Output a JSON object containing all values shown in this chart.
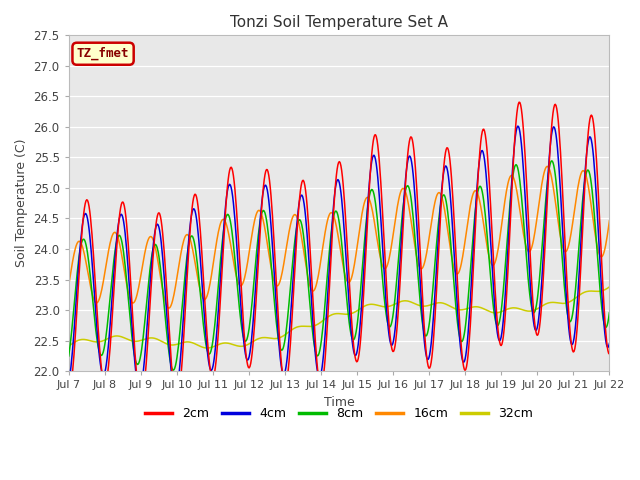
{
  "title": "Tonzi Soil Temperature Set A",
  "xlabel": "Time",
  "ylabel": "Soil Temperature (C)",
  "annotation": "TZ_fmet",
  "ylim": [
    22.0,
    27.5
  ],
  "yticks": [
    22.0,
    22.5,
    23.0,
    23.5,
    24.0,
    24.5,
    25.0,
    25.5,
    26.0,
    26.5,
    27.0,
    27.5
  ],
  "xtick_labels": [
    "Jul 7",
    "Jul 8",
    "Jul 9",
    "Jul 10",
    "Jul 11",
    "Jul 12",
    "Jul 13",
    "Jul 14",
    "Jul 15",
    "Jul 16",
    "Jul 17",
    "Jul 18",
    "Jul 19",
    "Jul 20",
    "Jul 21",
    "Jul 22"
  ],
  "line_colors": {
    "2cm": "#ff0000",
    "4cm": "#0000dd",
    "8cm": "#00bb00",
    "16cm": "#ff8800",
    "32cm": "#cccc00"
  },
  "bg_color": "#e8e8e8",
  "grid_color": "#ffffff",
  "annotation_bg": "#ffffcc",
  "annotation_border": "#cc0000",
  "annotation_text_color": "#880000"
}
